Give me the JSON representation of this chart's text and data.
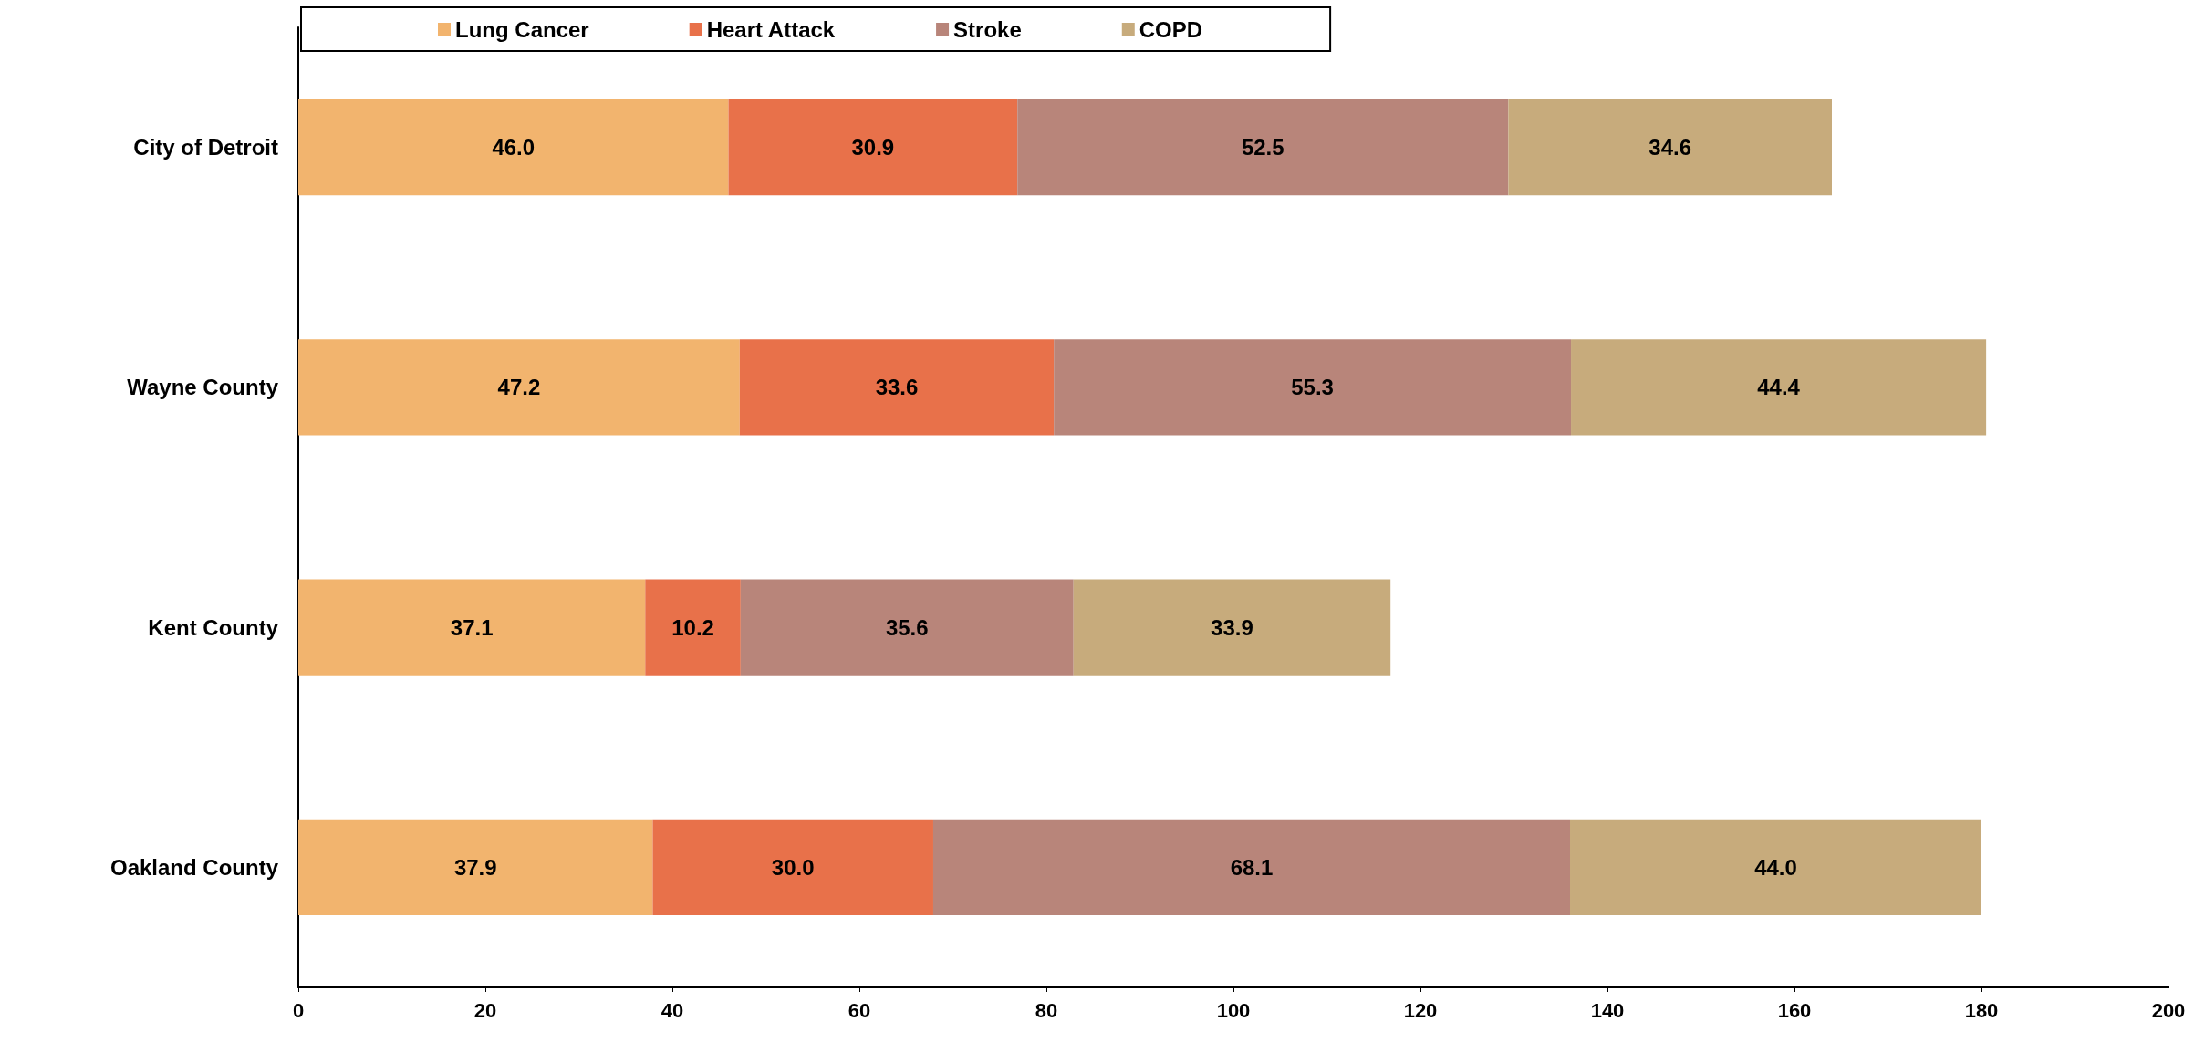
{
  "chart_data": {
    "type": "bar",
    "orientation": "horizontal",
    "stacked": true,
    "categories": [
      "City of Detroit",
      "Wayne County",
      "Kent County",
      "Oakland County"
    ],
    "series": [
      {
        "name": "Lung Cancer",
        "color": "#f2b46e",
        "values": [
          46.0,
          47.2,
          37.1,
          37.9
        ],
        "value_labels": [
          "46.0",
          "47.2",
          "37.1",
          "37.9"
        ]
      },
      {
        "name": "Heart Attack",
        "color": "#e8714a",
        "values": [
          30.9,
          33.6,
          10.2,
          30.0
        ],
        "value_labels": [
          "30.9",
          "33.6",
          "10.2",
          "30.0"
        ]
      },
      {
        "name": "Stroke",
        "color": "#b8857a",
        "values": [
          52.5,
          55.3,
          35.6,
          68.1
        ],
        "value_labels": [
          "52.5",
          "55.3",
          "35.6",
          "68.1"
        ]
      },
      {
        "name": "COPD",
        "color": "#c7ab7c",
        "values": [
          34.6,
          44.4,
          33.9,
          44.0
        ],
        "value_labels": [
          "34.6",
          "44.4",
          "33.9",
          "44.0"
        ]
      }
    ],
    "xlim": [
      0,
      200
    ],
    "xticks": [
      0,
      20,
      40,
      60,
      80,
      100,
      120,
      140,
      160,
      180,
      200
    ],
    "grid": false,
    "legend": "top"
  }
}
